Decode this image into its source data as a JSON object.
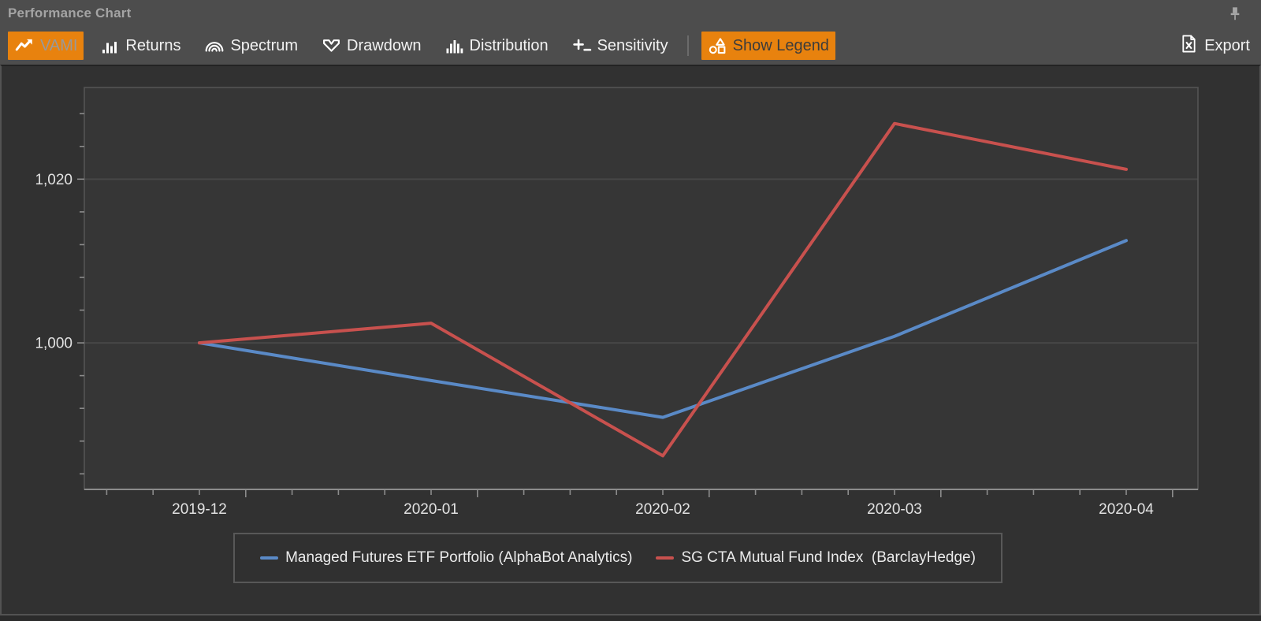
{
  "window": {
    "title": "Performance Chart"
  },
  "toolbar": {
    "view_buttons": [
      {
        "label": "VAMI",
        "icon": "trend-line-icon",
        "active": true,
        "label_tone": "muted"
      },
      {
        "label": "Returns",
        "icon": "bar-chart-icon",
        "active": false
      },
      {
        "label": "Spectrum",
        "icon": "spectrum-arcs-icon",
        "active": false
      },
      {
        "label": "Drawdown",
        "icon": "drawdown-pennant-icon",
        "active": false
      },
      {
        "label": "Distribution",
        "icon": "histogram-icon",
        "active": false
      },
      {
        "label": "Sensitivity",
        "icon": "sensitivity-plus-icon",
        "active": false
      }
    ],
    "legend_toggle": {
      "label": "Show Legend",
      "icon": "legend-shapes-icon",
      "active": true
    },
    "export": {
      "label": "Export",
      "icon": "excel-file-icon"
    }
  },
  "colors": {
    "accent_orange": "#E8820E",
    "series_blue": "#5A8AC7",
    "series_red": "#C8514E",
    "grid_line": "#474747",
    "axis_line": "#8C8C8C"
  },
  "chart_data": {
    "type": "line",
    "categories": [
      "2019-12",
      "2020-01",
      "2020-02",
      "2020-03",
      "2020-04"
    ],
    "series": [
      {
        "name": "Managed Futures ETF Portfolio (AlphaBot Analytics)",
        "color": "#5A8AC7",
        "values": [
          1000,
          995.4,
          990.9,
          1000.8,
          1012.5
        ]
      },
      {
        "name": "SG CTA Mutual Fund Index  (BarclayHedge)",
        "color": "#C8514E",
        "values": [
          1000,
          1002.4,
          986.2,
          1026.8,
          1021.2
        ]
      }
    ],
    "y_axis": {
      "ticks": [
        {
          "value": 1000,
          "label": "1,000"
        },
        {
          "value": 1020,
          "label": "1,020"
        }
      ],
      "range": [
        982.1,
        1031.2
      ],
      "minor_tick_step": 4
    },
    "x_axis": {
      "minor_ticks_per_interval": 5
    },
    "grid": "horizontal",
    "legend_position": "bottom"
  }
}
